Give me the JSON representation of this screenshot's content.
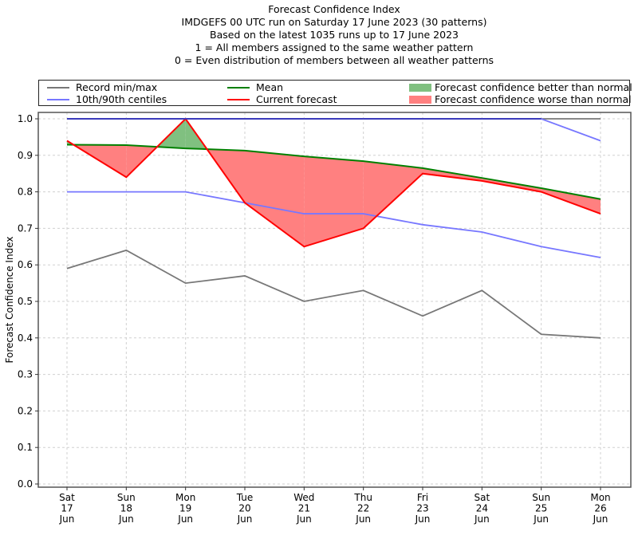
{
  "chart_data": {
    "type": "line",
    "title_lines": [
      "Forecast Confidence Index",
      "IMDGEFS 00 UTC run on Saturday 17 June 2023 (30 patterns)",
      "Based on the latest 1035 runs up to 17 June 2023",
      "1 = All members assigned to the same weather pattern",
      "0 = Even distribution of members between all weather patterns"
    ],
    "xlabel": "",
    "ylabel": "Forecast Confidence Index",
    "ylim": [
      0.0,
      1.0
    ],
    "yticks": [
      "0.0",
      "0.1",
      "0.2",
      "0.3",
      "0.4",
      "0.5",
      "0.6",
      "0.7",
      "0.8",
      "0.9",
      "1.0"
    ],
    "grid": true,
    "legend_placement": "top (above plot)",
    "categories": [
      [
        "Sat",
        "17",
        "Jun"
      ],
      [
        "Sun",
        "18",
        "Jun"
      ],
      [
        "Mon",
        "19",
        "Jun"
      ],
      [
        "Tue",
        "20",
        "Jun"
      ],
      [
        "Wed",
        "21",
        "Jun"
      ],
      [
        "Thu",
        "22",
        "Jun"
      ],
      [
        "Fri",
        "23",
        "Jun"
      ],
      [
        "Sat",
        "24",
        "Jun"
      ],
      [
        "Sun",
        "25",
        "Jun"
      ],
      [
        "Mon",
        "26",
        "Jun"
      ]
    ],
    "series": [
      {
        "name": "Record max",
        "legend": "Record min/max",
        "color": "#777777",
        "values": [
          1.0,
          1.0,
          1.0,
          1.0,
          1.0,
          1.0,
          1.0,
          1.0,
          1.0,
          1.0
        ]
      },
      {
        "name": "Record min",
        "legend": "Record min/max",
        "color": "#777777",
        "values": [
          0.59,
          0.64,
          0.55,
          0.57,
          0.5,
          0.53,
          0.46,
          0.53,
          0.41,
          0.4
        ]
      },
      {
        "name": "90th centile",
        "legend": "10th/90th centiles",
        "color": "#7777ff",
        "values": [
          1.0,
          1.0,
          1.0,
          1.0,
          1.0,
          1.0,
          1.0,
          1.0,
          1.0,
          0.94
        ]
      },
      {
        "name": "10th centile",
        "legend": "10th/90th centiles",
        "color": "#7777ff",
        "values": [
          0.8,
          0.8,
          0.8,
          0.77,
          0.74,
          0.74,
          0.71,
          0.69,
          0.65,
          0.62
        ]
      },
      {
        "name": "Mean",
        "legend": "Mean",
        "color": "#008000",
        "values": [
          0.929,
          0.928,
          0.919,
          0.913,
          0.897,
          0.884,
          0.865,
          0.838,
          0.81,
          0.78
        ]
      },
      {
        "name": "Current forecast",
        "legend": "Current forecast",
        "color": "#ff0000",
        "values": [
          0.94,
          0.84,
          1.0,
          0.77,
          0.65,
          0.7,
          0.85,
          0.83,
          0.8,
          0.74
        ]
      }
    ],
    "fills": {
      "better": {
        "label": "Forecast confidence better than normal",
        "color": "#80c080"
      },
      "worse": {
        "label": "Forecast confidence worse than normal",
        "color": "#ff8080"
      }
    }
  },
  "legend": {
    "items": [
      {
        "label": "Record min/max",
        "color": "#777777"
      },
      {
        "label": "10th/90th centiles",
        "color": "#7777ff"
      },
      {
        "label": "Mean",
        "color": "#008000"
      },
      {
        "label": "Current forecast",
        "color": "#ff0000"
      },
      {
        "label": "Forecast confidence better than normal",
        "color": "#80c080"
      },
      {
        "label": "Forecast confidence worse than normal",
        "color": "#ff8080"
      }
    ]
  }
}
